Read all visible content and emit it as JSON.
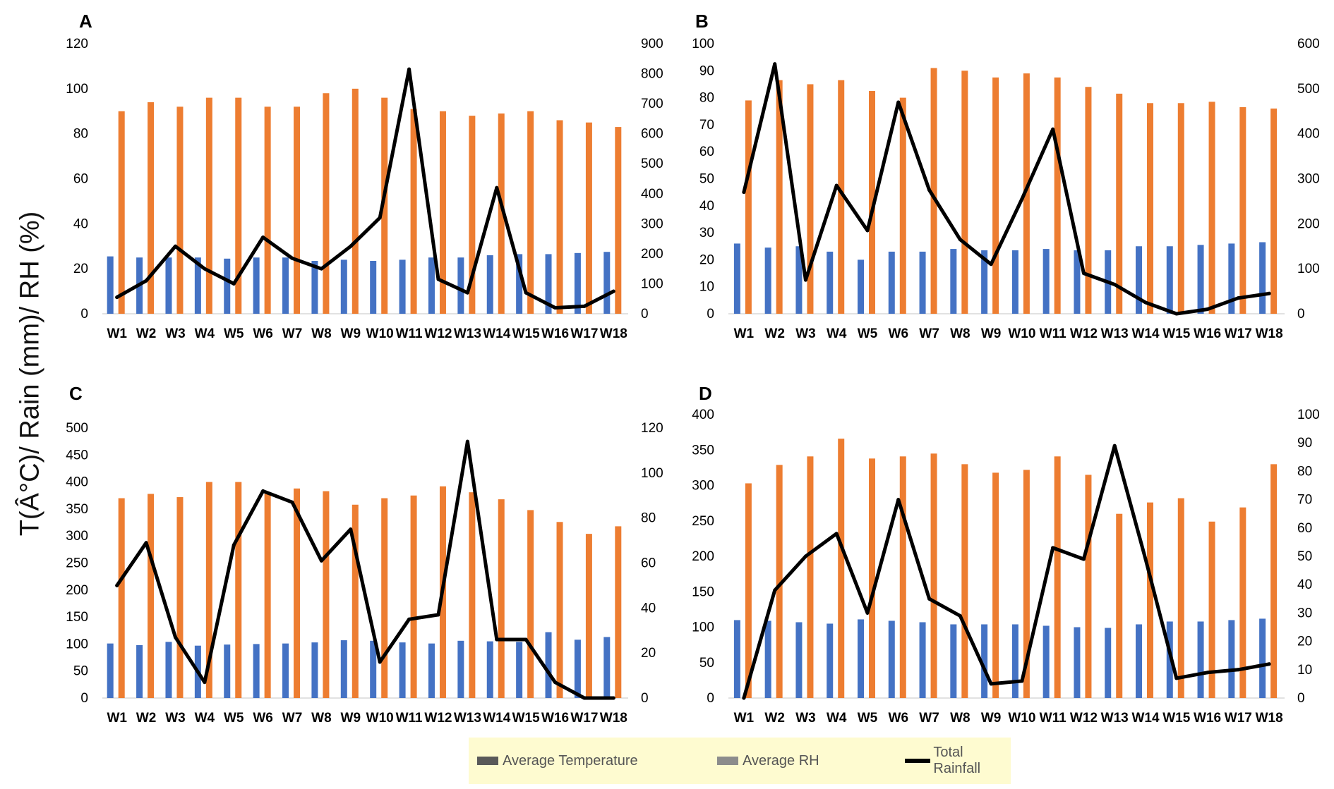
{
  "figure": {
    "y_axis_label": "T(Â°C)/ Rain (mm)/ RH (%)",
    "legend": [
      {
        "label": "Average Temperature",
        "color": "#595959"
      },
      {
        "label": "Average RH",
        "color": "#8c8c8c"
      },
      {
        "label": "Total Rainfall",
        "color": "#000000"
      }
    ]
  },
  "colors": {
    "temperature": "#4472c4",
    "rh": "#ed7d31",
    "rainfall": "#000000"
  },
  "chart_data": [
    {
      "type": "bar+line",
      "panel": "A",
      "categories": [
        "W1",
        "W2",
        "W3",
        "W4",
        "W5",
        "W6",
        "W7",
        "W8",
        "W9",
        "W10",
        "W11",
        "W12",
        "W13",
        "W14",
        "W15",
        "W16",
        "W17",
        "W18"
      ],
      "left_axis": {
        "min": 0,
        "max": 120,
        "step": 20
      },
      "right_axis": {
        "min": 0,
        "max": 900,
        "step": 100
      },
      "series": [
        {
          "name": "Average Temperature",
          "kind": "bar",
          "axis": "left",
          "values": [
            25.5,
            25,
            25,
            25,
            24.5,
            25,
            25,
            23.5,
            24,
            23.5,
            24,
            25,
            25,
            26,
            26.5,
            26.5,
            27,
            27.5
          ]
        },
        {
          "name": "Average RH",
          "kind": "bar",
          "axis": "left",
          "values": [
            90,
            94,
            92,
            96,
            96,
            92,
            92,
            98,
            100,
            96,
            91,
            90,
            88,
            89,
            90,
            86,
            85,
            83
          ]
        },
        {
          "name": "Total Rainfall",
          "kind": "line",
          "axis": "right",
          "values": [
            55,
            110,
            225,
            150,
            100,
            255,
            185,
            150,
            225,
            320,
            815,
            115,
            70,
            420,
            70,
            20,
            25,
            75
          ]
        }
      ]
    },
    {
      "type": "bar+line",
      "panel": "B",
      "categories": [
        "W1",
        "W2",
        "W3",
        "W4",
        "W5",
        "W6",
        "W7",
        "W8",
        "W9",
        "W10",
        "W11",
        "W12",
        "W13",
        "W14",
        "W15",
        "W16",
        "W17",
        "W18"
      ],
      "left_axis": {
        "min": 0,
        "max": 100,
        "step": 10
      },
      "right_axis": {
        "min": 0,
        "max": 600,
        "step": 100
      },
      "series": [
        {
          "name": "Average Temperature",
          "kind": "bar",
          "axis": "left",
          "values": [
            26,
            24.5,
            25,
            23,
            20,
            23,
            23,
            24,
            23.5,
            23.5,
            24,
            23.5,
            23.5,
            25,
            25,
            25.5,
            26,
            26.5
          ]
        },
        {
          "name": "Average RH",
          "kind": "bar",
          "axis": "left",
          "values": [
            79,
            86.5,
            85,
            86.5,
            82.5,
            80,
            91,
            90,
            87.5,
            89,
            87.5,
            84,
            81.5,
            78,
            78,
            78.5,
            76.5,
            76
          ]
        },
        {
          "name": "Total Rainfall",
          "kind": "line",
          "axis": "right",
          "values": [
            270,
            555,
            75,
            285,
            185,
            470,
            275,
            165,
            110,
            255,
            410,
            90,
            65,
            25,
            0,
            10,
            35,
            45
          ]
        }
      ]
    },
    {
      "type": "bar+line",
      "panel": "C",
      "categories": [
        "W1",
        "W2",
        "W3",
        "W4",
        "W5",
        "W6",
        "W7",
        "W8",
        "W9",
        "W10",
        "W11",
        "W12",
        "W13",
        "W14",
        "W15",
        "W16",
        "W17",
        "W18"
      ],
      "left_axis": {
        "min": 0,
        "max": 500,
        "step": 50
      },
      "right_axis": {
        "min": 0,
        "max": 120,
        "step": 20
      },
      "series": [
        {
          "name": "Average Temperature",
          "kind": "bar",
          "axis": "left",
          "values": [
            101,
            98,
            104,
            97,
            99,
            100,
            101,
            103,
            107,
            106,
            103,
            101,
            106,
            105,
            104,
            122,
            108,
            113
          ]
        },
        {
          "name": "Average RH",
          "kind": "bar",
          "axis": "left",
          "values": [
            370,
            378,
            372,
            400,
            400,
            378,
            388,
            383,
            358,
            370,
            375,
            392,
            381,
            368,
            348,
            326,
            304,
            318
          ]
        },
        {
          "name": "Total Rainfall",
          "kind": "line",
          "axis": "right",
          "values": [
            50,
            69,
            27,
            7,
            68,
            92,
            87,
            61,
            75,
            16,
            35,
            37,
            114,
            26,
            26,
            7,
            0,
            0
          ]
        }
      ]
    },
    {
      "type": "bar+line",
      "panel": "D",
      "categories": [
        "W1",
        "W2",
        "W3",
        "W4",
        "W5",
        "W6",
        "W7",
        "W8",
        "W9",
        "W10",
        "W11",
        "W12",
        "W13",
        "W14",
        "W15",
        "W16",
        "W17",
        "W18"
      ],
      "left_axis": {
        "min": 0,
        "max": 400,
        "step": 50
      },
      "right_axis": {
        "min": 0,
        "max": 100,
        "step": 10
      },
      "series": [
        {
          "name": "Average Temperature",
          "kind": "bar",
          "axis": "left",
          "values": [
            110,
            109,
            107,
            105,
            111,
            109,
            107,
            104,
            104,
            104,
            102,
            100,
            99,
            104,
            108,
            108,
            110,
            112
          ]
        },
        {
          "name": "Average RH",
          "kind": "bar",
          "axis": "left",
          "values": [
            303,
            329,
            341,
            366,
            338,
            341,
            345,
            330,
            318,
            322,
            341,
            315,
            260,
            276,
            282,
            249,
            269,
            330
          ]
        },
        {
          "name": "Total Rainfall",
          "kind": "line",
          "axis": "right",
          "values": [
            0,
            38,
            50,
            58,
            30,
            70,
            35,
            29,
            5,
            6,
            53,
            49,
            89,
            49,
            7,
            9,
            10,
            12
          ]
        }
      ]
    }
  ]
}
